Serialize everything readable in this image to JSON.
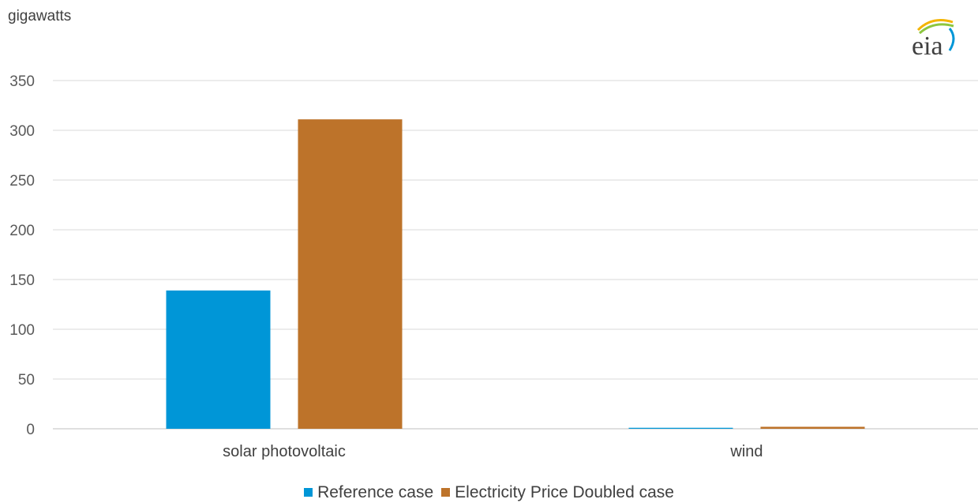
{
  "chart_data": {
    "type": "bar",
    "ylabel": "gigawatts",
    "categories": [
      "solar photovoltaic",
      "wind"
    ],
    "series": [
      {
        "name": "Reference case",
        "values": [
          139,
          1
        ],
        "color": "#0096D7"
      },
      {
        "name": "Electricity Price Doubled case",
        "values": [
          311,
          2
        ],
        "color": "#BD732A"
      }
    ],
    "ylim": [
      0,
      350
    ],
    "yticks": [
      0,
      50,
      100,
      150,
      200,
      250,
      300,
      350
    ],
    "grid": true,
    "legend_position": "bottom"
  },
  "logo": {
    "text": "eia",
    "icon": "eia-logo-icon",
    "colors": [
      "#F4B400",
      "#8DC63F",
      "#0096D7"
    ]
  }
}
